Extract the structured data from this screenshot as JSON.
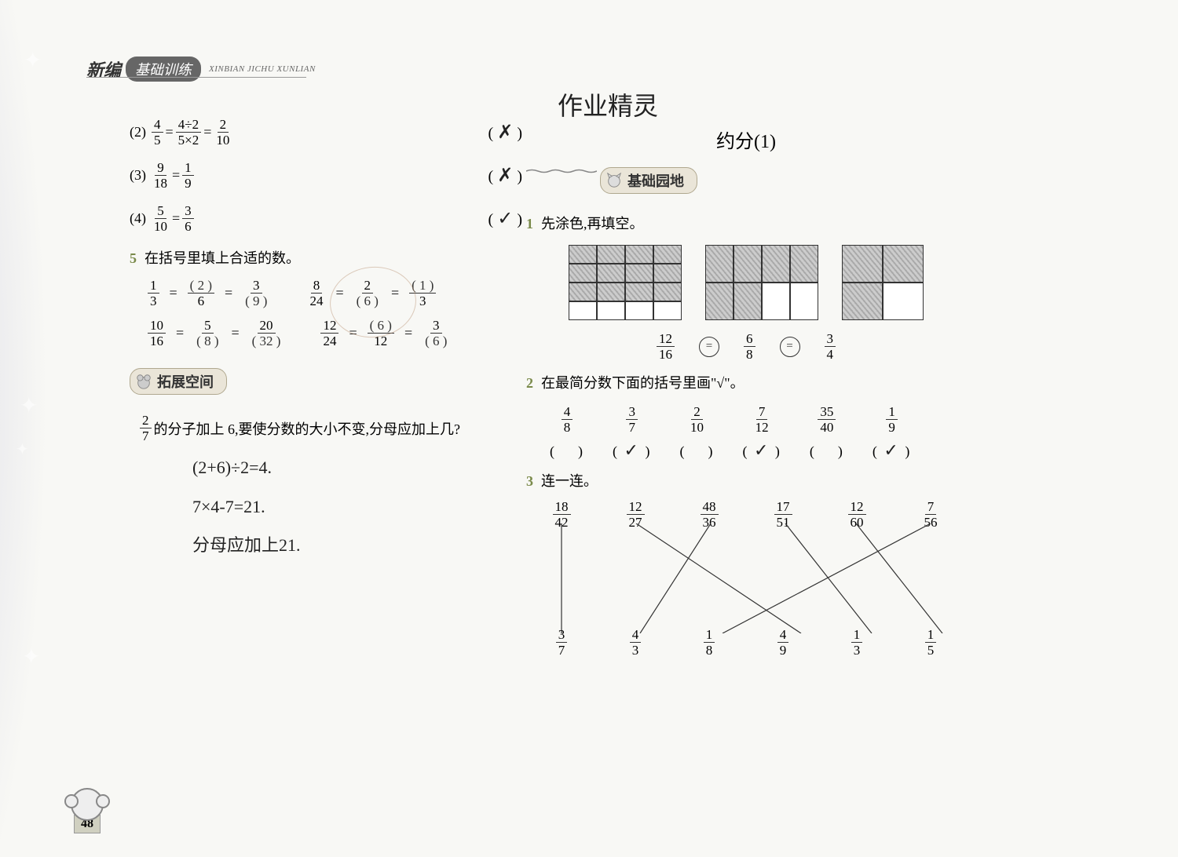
{
  "header": {
    "brand_prefix": "新编",
    "brand_pill": "基础训练",
    "pinyin": "XINBIAN JICHU XUNLIAN"
  },
  "page_number": "48",
  "left": {
    "judgments": [
      {
        "label": "(2)",
        "expr_parts": [
          "4",
          "5",
          "=",
          "4÷2",
          "5×2",
          "=",
          "2",
          "10"
        ],
        "mark": "✗"
      },
      {
        "label": "(3)",
        "expr_parts": [
          "9",
          "18",
          "=",
          "1",
          "9"
        ],
        "mark": "✗"
      },
      {
        "label": "(4)",
        "expr_parts": [
          "5",
          "10",
          "=",
          "3",
          "6"
        ],
        "mark": "✓"
      }
    ],
    "q5_label": "5",
    "q5_text": "在括号里填上合适的数。",
    "q5_rows": [
      {
        "cells": [
          {
            "n": "1",
            "d": "3"
          },
          {
            "eq": "="
          },
          {
            "n": "( 2 )",
            "d": "6",
            "hand_n": true
          },
          {
            "eq": "="
          },
          {
            "n": "3",
            "d": "( 9 )",
            "hand_d": true
          },
          {
            "gap": true
          },
          {
            "n": "8",
            "d": "24"
          },
          {
            "eq": "="
          },
          {
            "n": "2",
            "d": "( 6 )",
            "hand_d": true
          },
          {
            "eq": "="
          },
          {
            "n": "( 1 )",
            "d": "3",
            "hand_n": true
          }
        ]
      },
      {
        "cells": [
          {
            "n": "10",
            "d": "16"
          },
          {
            "eq": "="
          },
          {
            "n": "5",
            "d": "( 8 )",
            "hand_d": true
          },
          {
            "eq": "="
          },
          {
            "n": "20",
            "d": "( 32 )",
            "hand_d": true
          },
          {
            "gap": true
          },
          {
            "n": "12",
            "d": "24"
          },
          {
            "eq": "="
          },
          {
            "n": "( 6 )",
            "d": "12",
            "hand_n": true
          },
          {
            "eq": "="
          },
          {
            "n": "3",
            "d": "( 6 )",
            "hand_d": true
          }
        ]
      }
    ],
    "expand_title": "拓展空间",
    "expand_q": {
      "frac_n": "2",
      "frac_d": "7",
      "tail": "的分子加上 6,要使分数的大小不变,分母应加上几?"
    },
    "hand_lines": [
      "(2+6)÷2=4.",
      "7×4-7=21.",
      "分母应加上21."
    ]
  },
  "right": {
    "hand_title": "作业精灵",
    "chapter": "约分(1)",
    "section1": "基础园地",
    "q1_label": "1",
    "q1_text": "先涂色,再填空。",
    "grids": {
      "g1_shaded": [
        0,
        1,
        2,
        3,
        4,
        5,
        6,
        7,
        8,
        9,
        10,
        11
      ],
      "g2_shaded": [
        0,
        1,
        2,
        3,
        4,
        5
      ],
      "g3_shaded": [
        0,
        1,
        2
      ]
    },
    "q1_fracs": [
      {
        "n": "12",
        "d": "16"
      },
      {
        "n": "6",
        "d": "8"
      },
      {
        "n": "3",
        "d": "4"
      }
    ],
    "circle_sym": "=",
    "q2_label": "2",
    "q2_text": "在最简分数下面的括号里画\"√\"。",
    "q2_items": [
      {
        "n": "4",
        "d": "8",
        "chk": ""
      },
      {
        "n": "3",
        "d": "7",
        "chk": "✓"
      },
      {
        "n": "2",
        "d": "10",
        "chk": ""
      },
      {
        "n": "7",
        "d": "12",
        "chk": "✓"
      },
      {
        "n": "35",
        "d": "40",
        "chk": ""
      },
      {
        "n": "1",
        "d": "9",
        "chk": "✓"
      }
    ],
    "q3_label": "3",
    "q3_text": "连一连。",
    "match_top": [
      {
        "n": "18",
        "d": "42"
      },
      {
        "n": "12",
        "d": "27"
      },
      {
        "n": "48",
        "d": "36"
      },
      {
        "n": "17",
        "d": "51"
      },
      {
        "n": "12",
        "d": "60"
      },
      {
        "n": "7",
        "d": "56"
      }
    ],
    "match_bot": [
      {
        "n": "3",
        "d": "7"
      },
      {
        "n": "4",
        "d": "3"
      },
      {
        "n": "1",
        "d": "8"
      },
      {
        "n": "4",
        "d": "9"
      },
      {
        "n": "1",
        "d": "3"
      },
      {
        "n": "1",
        "d": "5"
      }
    ],
    "match_lines": [
      [
        25,
        0,
        25,
        140
      ],
      [
        120,
        0,
        330,
        140
      ],
      [
        215,
        0,
        125,
        140
      ],
      [
        310,
        0,
        420,
        140
      ],
      [
        400,
        0,
        510,
        140
      ],
      [
        495,
        0,
        230,
        140
      ]
    ],
    "line_color": "#333333"
  },
  "colors": {
    "q_label": "#7a8a4a",
    "hand": "#222222",
    "bg": "#f8f8f5"
  }
}
